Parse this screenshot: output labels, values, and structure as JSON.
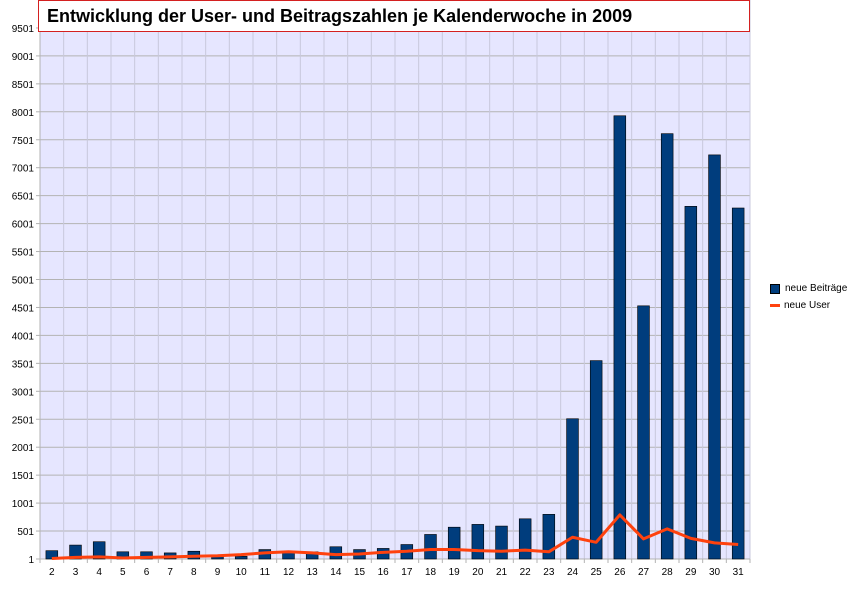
{
  "chart_data": {
    "type": "bar",
    "title": "Entwicklung der User- und Beitragszahlen je Kalenderwoche in 2009",
    "categories": [
      "2",
      "3",
      "4",
      "5",
      "6",
      "7",
      "8",
      "9",
      "10",
      "11",
      "12",
      "13",
      "14",
      "15",
      "16",
      "17",
      "18",
      "19",
      "20",
      "21",
      "22",
      "23",
      "24",
      "25",
      "26",
      "27",
      "28",
      "29",
      "30",
      "31"
    ],
    "yticks": [
      "1",
      "501",
      "1001",
      "1501",
      "2001",
      "2501",
      "3001",
      "3501",
      "4001",
      "4501",
      "5001",
      "5501",
      "6001",
      "6501",
      "7001",
      "7501",
      "8001",
      "8501",
      "9001",
      "9501"
    ],
    "ylim": [
      1,
      9501
    ],
    "grid": true,
    "legend_position": "right",
    "colors": {
      "bar": "#003d7d",
      "line": "#ff420e",
      "plot_bg": "#e6e6ff"
    },
    "series": [
      {
        "name": "neue Beiträge",
        "type": "bar",
        "values": [
          150,
          250,
          310,
          130,
          130,
          110,
          140,
          40,
          50,
          170,
          140,
          130,
          220,
          170,
          190,
          260,
          440,
          570,
          620,
          590,
          720,
          800,
          2510,
          3550,
          7930,
          4530,
          7610,
          6310,
          7230,
          6280
        ]
      },
      {
        "name": "neue User",
        "type": "line",
        "values": [
          10,
          30,
          40,
          20,
          30,
          40,
          50,
          60,
          80,
          110,
          130,
          110,
          80,
          90,
          120,
          140,
          170,
          170,
          150,
          140,
          160,
          130,
          390,
          300,
          790,
          360,
          540,
          370,
          290,
          260
        ]
      }
    ]
  }
}
